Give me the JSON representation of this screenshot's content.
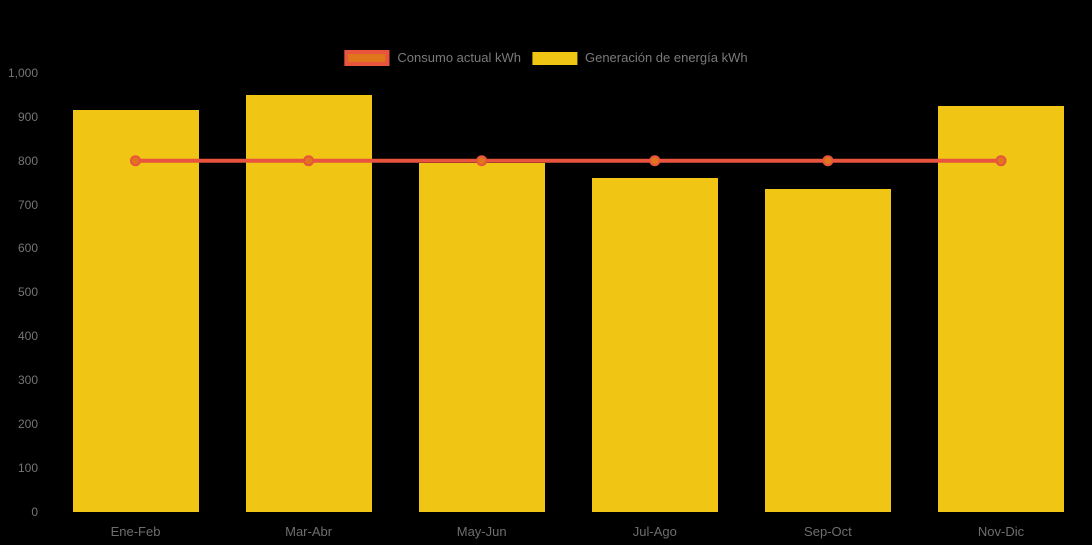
{
  "chart_data": {
    "type": "bar",
    "subtype": "bar-with-line-overlay",
    "title": "",
    "categories": [
      "Ene-Feb",
      "Mar-Abr",
      "May-Jun",
      "Jul-Ago",
      "Sep-Oct",
      "Nov-Dic"
    ],
    "series": [
      {
        "name": "Consumo actual kWh",
        "type": "line",
        "values": [
          800,
          800,
          800,
          800,
          800,
          800
        ],
        "line_color": "#E8543D",
        "marker_color": "#E0761C"
      },
      {
        "name": "Generación de energía kWh",
        "type": "bar",
        "values": [
          915,
          950,
          795,
          760,
          735,
          925
        ],
        "color": "#F1C513"
      }
    ],
    "xlabel": "",
    "ylabel": "",
    "ylim": [
      0,
      1000
    ],
    "ytick_step": 100,
    "ytick_labels": [
      "0",
      "100",
      "200",
      "300",
      "400",
      "500",
      "600",
      "700",
      "800",
      "900",
      "1,000"
    ],
    "grid": false,
    "legend_position": "top-center",
    "background_color": "#000000",
    "axis_text_color": "#757575",
    "legend_text_color": "#7A7A7A"
  }
}
